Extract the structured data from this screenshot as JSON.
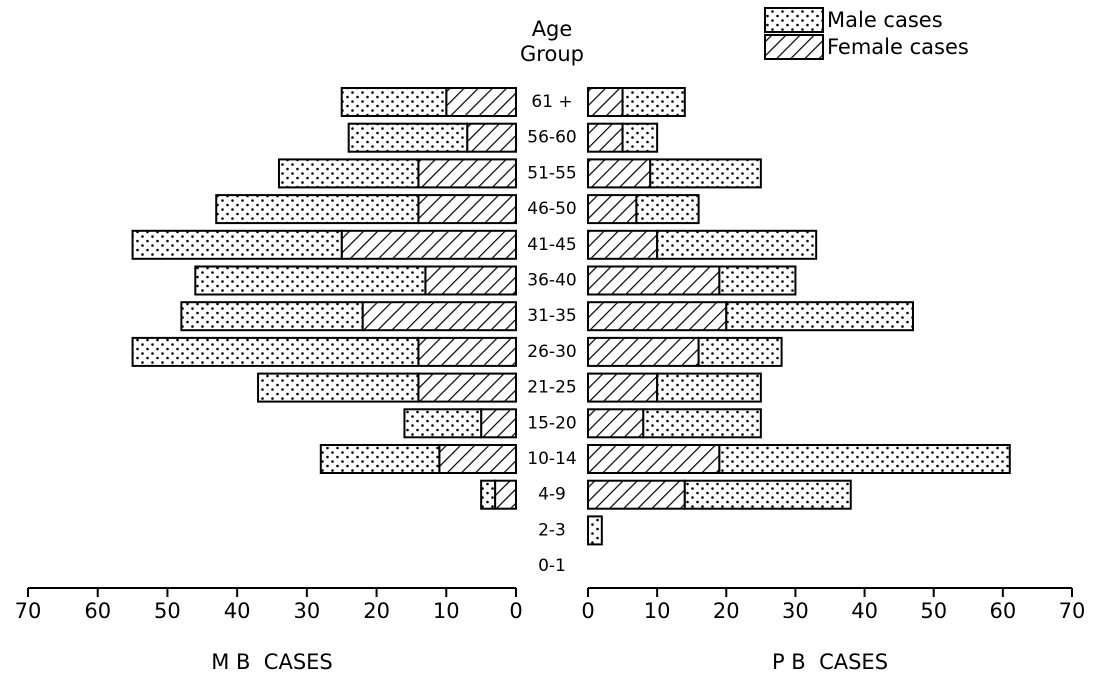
{
  "chart_data": {
    "type": "bar",
    "orientation": "horizontal",
    "y_label": "Age Group",
    "categories": [
      "61 +",
      "56-60",
      "51-55",
      "46-50",
      "41-45",
      "36-40",
      "31-35",
      "26-30",
      "21-25",
      "15-20",
      "10-14",
      "4-9",
      "2-3",
      "0-1"
    ],
    "legend": "upper right",
    "panels": [
      {
        "x_label": "M B  CASES",
        "xlim": [
          70,
          0
        ],
        "xticks": [
          0,
          10,
          20,
          30,
          40,
          50,
          60,
          70
        ]
      },
      {
        "x_label": "P B  CASES",
        "xlim": [
          0,
          70
        ],
        "xticks": [
          0,
          10,
          20,
          30,
          40,
          50,
          60,
          70
        ]
      }
    ],
    "series": [
      {
        "name": "Male cases",
        "color": "#000000",
        "pattern": "dots",
        "values": [
          [
            15,
            17,
            20,
            29,
            30,
            33,
            26,
            41,
            23,
            11,
            17,
            2,
            0,
            0
          ],
          [
            9,
            5,
            16,
            9,
            23,
            11,
            27,
            12,
            15,
            17,
            42,
            24,
            2,
            0
          ]
        ]
      },
      {
        "name": "Female cases",
        "color": "#000000",
        "pattern": "hatch",
        "values": [
          [
            10,
            7,
            14,
            14,
            25,
            13,
            22,
            14,
            14,
            5,
            11,
            3,
            0,
            0
          ],
          [
            5,
            5,
            9,
            7,
            10,
            19,
            20,
            16,
            10,
            8,
            19,
            14,
            0,
            0
          ]
        ]
      }
    ]
  }
}
